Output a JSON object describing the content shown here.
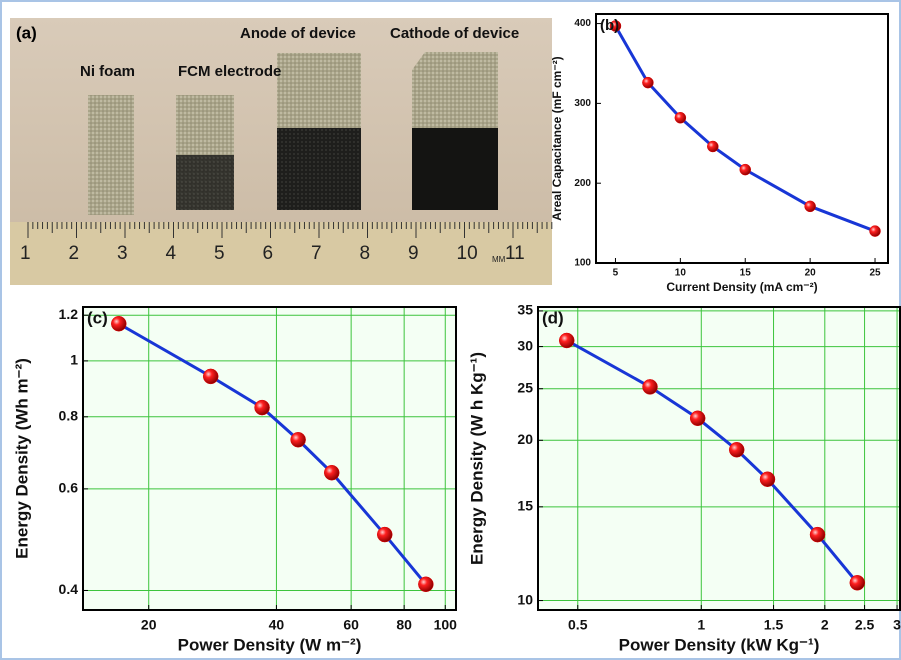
{
  "photo": {
    "panel_label": "(a)",
    "labels": [
      "Ni foam",
      "FCM electrode",
      "Anode of device",
      "Cathode of device"
    ],
    "ruler_labels": [
      "1",
      "2",
      "3",
      "4",
      "5",
      "6",
      "7",
      "8",
      "9",
      "10",
      "11"
    ],
    "ruler_unit": "MM"
  },
  "chart_data": [
    {
      "type": "line",
      "panel_label": "(b)",
      "xlabel": "Current Density (mA cm⁻²)",
      "ylabel": "Areal Capacitance (mF cm⁻²)",
      "x": [
        5,
        7.5,
        10,
        12.5,
        15,
        20,
        25
      ],
      "values": [
        397,
        326,
        282,
        246,
        217,
        171,
        140
      ],
      "xlim": [
        3.5,
        26
      ],
      "ylim": [
        100,
        412
      ],
      "xticks": [
        5,
        10,
        15,
        20,
        25
      ],
      "yticks": [
        100,
        200,
        300,
        400
      ],
      "color": "#1836d6",
      "marker_color": "#e00000",
      "grid": false,
      "log_x": false,
      "log_y": false
    },
    {
      "type": "line",
      "panel_label": "(c)",
      "xlabel": "Power Density (W m⁻²)",
      "ylabel": "Energy Density (Wh m⁻²)",
      "x": [
        17,
        28,
        37,
        45,
        54,
        72,
        90
      ],
      "values": [
        1.16,
        0.94,
        0.83,
        0.73,
        0.64,
        0.5,
        0.41
      ],
      "xlim": [
        14,
        106
      ],
      "ylim": [
        0.37,
        1.24
      ],
      "xticks": [
        20,
        40,
        60,
        80,
        100
      ],
      "yticks": [
        0.4,
        0.6,
        0.8,
        1,
        1.2
      ],
      "color": "#1836d6",
      "marker_color": "#e00000",
      "grid": true,
      "log_x": true,
      "log_y": true
    },
    {
      "type": "line",
      "panel_label": "(d)",
      "xlabel": "Power Density (kW Kg⁻¹)",
      "ylabel": "Energy Density (W h Kg⁻¹)",
      "x": [
        0.47,
        0.75,
        0.98,
        1.22,
        1.45,
        1.92,
        2.4
      ],
      "values": [
        30.8,
        25.2,
        22,
        19.2,
        16.9,
        13.3,
        10.8
      ],
      "xlim": [
        0.4,
        3.05
      ],
      "ylim": [
        9.6,
        35.6
      ],
      "xticks": [
        0.5,
        1,
        1.5,
        2,
        2.5,
        3
      ],
      "yticks": [
        10,
        15,
        20,
        25,
        30,
        35
      ],
      "color": "#1836d6",
      "marker_color": "#e00000",
      "grid": true,
      "log_x": true,
      "log_y": true
    }
  ]
}
